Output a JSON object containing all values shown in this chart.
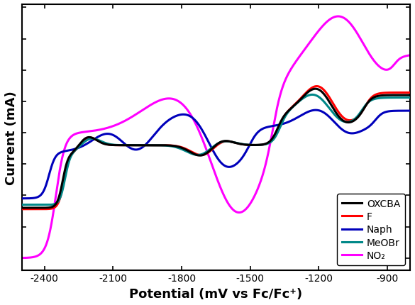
{
  "xlabel": "Potential (mV vs Fc/Fc⁺)",
  "ylabel": "Current (mA)",
  "xlim": [
    -2500,
    -800
  ],
  "xticks": [
    -2400,
    -2100,
    -1800,
    -1500,
    -1200,
    -900
  ],
  "background_color": "#ffffff",
  "legend_entries": [
    "OXCBA",
    "F",
    "Naph",
    "MeOBr",
    "NO₂"
  ],
  "legend_colors": [
    "#000000",
    "#ff0000",
    "#0000bb",
    "#008888",
    "#ff00ff"
  ],
  "line_widths": [
    2.2,
    2.2,
    2.2,
    2.2,
    2.2
  ],
  "label_fontsize": 13
}
